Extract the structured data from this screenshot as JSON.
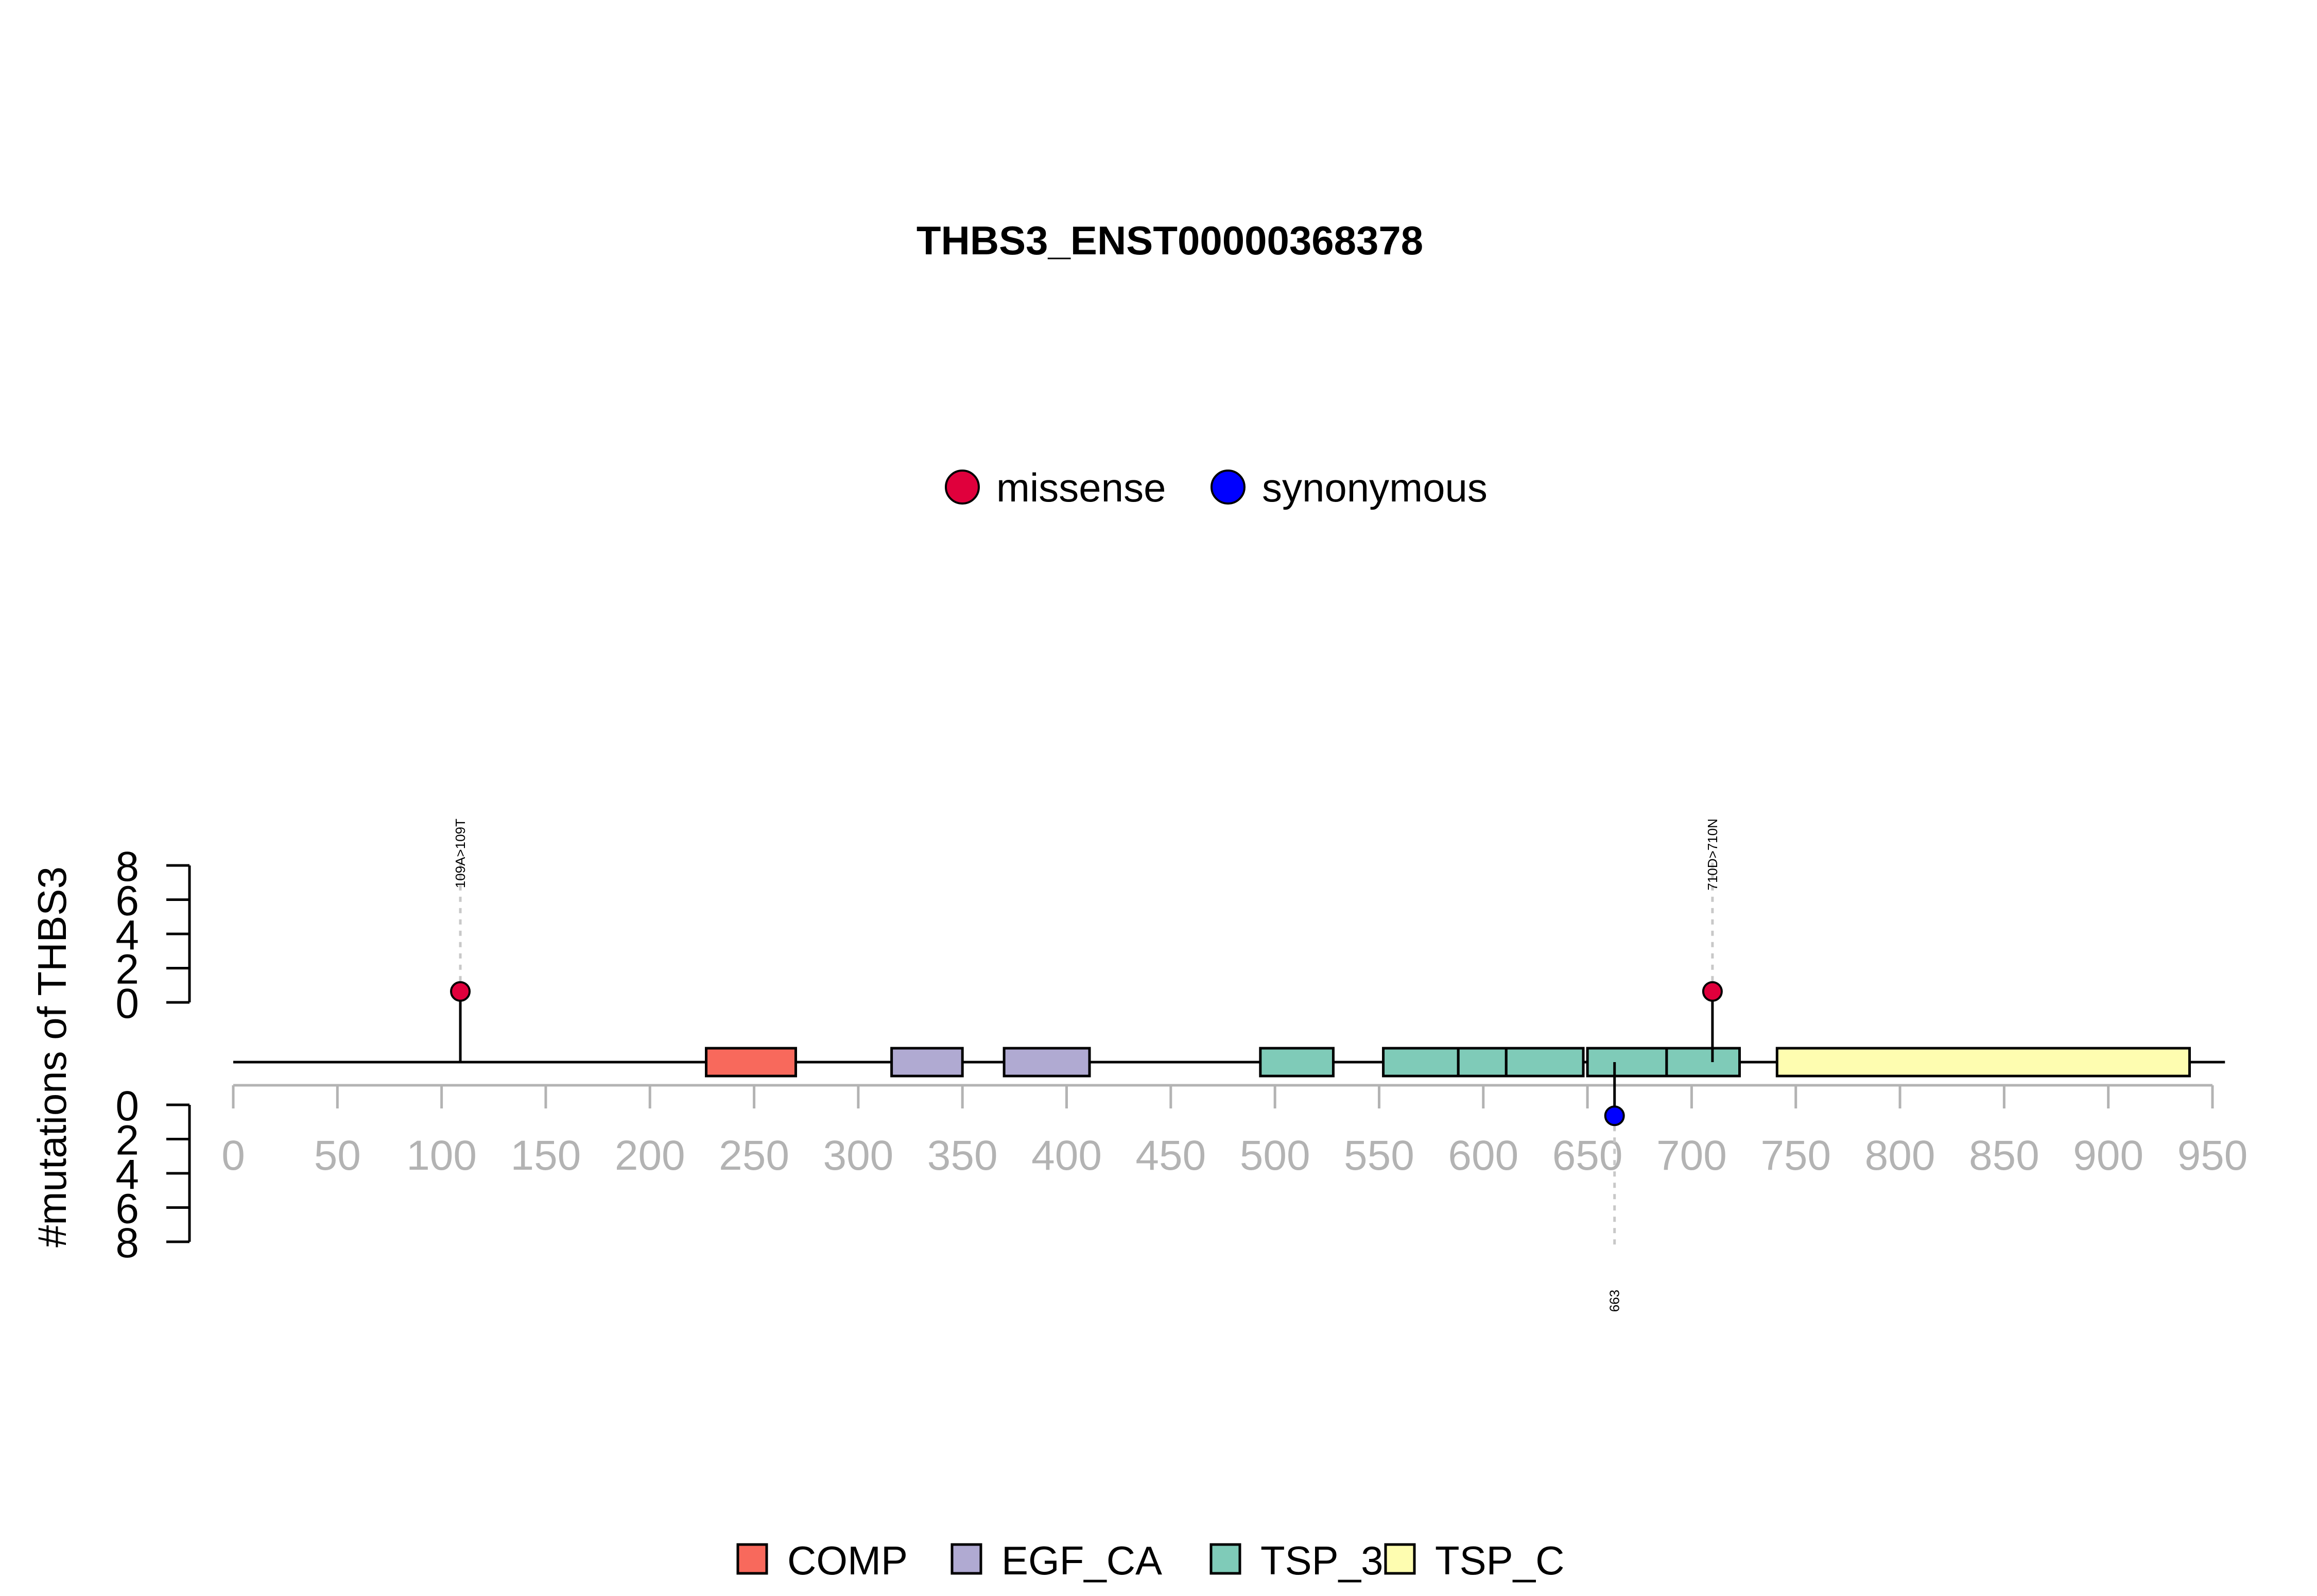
{
  "chart_data": {
    "type": "lollipop",
    "title": "THBS3_ENST00000368378",
    "ylabel": "#mutations of THBS3",
    "xlim": [
      0,
      950
    ],
    "x_ticks": [
      0,
      50,
      100,
      150,
      200,
      250,
      300,
      350,
      400,
      450,
      500,
      550,
      600,
      650,
      700,
      750,
      800,
      850,
      900,
      950
    ],
    "y_ticks_top": [
      0,
      2,
      4,
      6,
      8
    ],
    "y_ticks_bottom": [
      0,
      2,
      4,
      6,
      8
    ],
    "protein_length": 956,
    "mutation_legend": [
      {
        "name": "missense",
        "color": "#e0003c"
      },
      {
        "name": "synonymous",
        "color": "#0000ff"
      }
    ],
    "domain_legend": [
      {
        "name": "COMP",
        "color": "#f8695c"
      },
      {
        "name": "EGF_CA",
        "color": "#b0aad2"
      },
      {
        "name": "TSP_3",
        "color": "#7fcbb8"
      },
      {
        "name": "TSP_C",
        "color": "#fefdb0"
      }
    ],
    "domains": [
      {
        "name": "COMP",
        "start": 227,
        "end": 270
      },
      {
        "name": "EGF_CA",
        "start": 316,
        "end": 350
      },
      {
        "name": "EGF_CA",
        "start": 370,
        "end": 411
      },
      {
        "name": "TSP_3",
        "start": 493,
        "end": 528
      },
      {
        "name": "TSP_3",
        "start": 552,
        "end": 588
      },
      {
        "name": "TSP_3",
        "start": 588,
        "end": 611
      },
      {
        "name": "TSP_3",
        "start": 611,
        "end": 648
      },
      {
        "name": "TSP_3",
        "start": 650,
        "end": 688
      },
      {
        "name": "TSP_3",
        "start": 688,
        "end": 723
      },
      {
        "name": "TSP_C",
        "start": 741,
        "end": 939
      }
    ],
    "mutations": [
      {
        "position": 109,
        "count": 1,
        "type": "missense",
        "side": "top",
        "label": "109A>109T"
      },
      {
        "position": 710,
        "count": 1,
        "type": "missense",
        "side": "top",
        "label": "710D>710N"
      },
      {
        "position": 663,
        "count": 1,
        "type": "synonymous",
        "side": "bottom",
        "label": "663"
      }
    ]
  }
}
